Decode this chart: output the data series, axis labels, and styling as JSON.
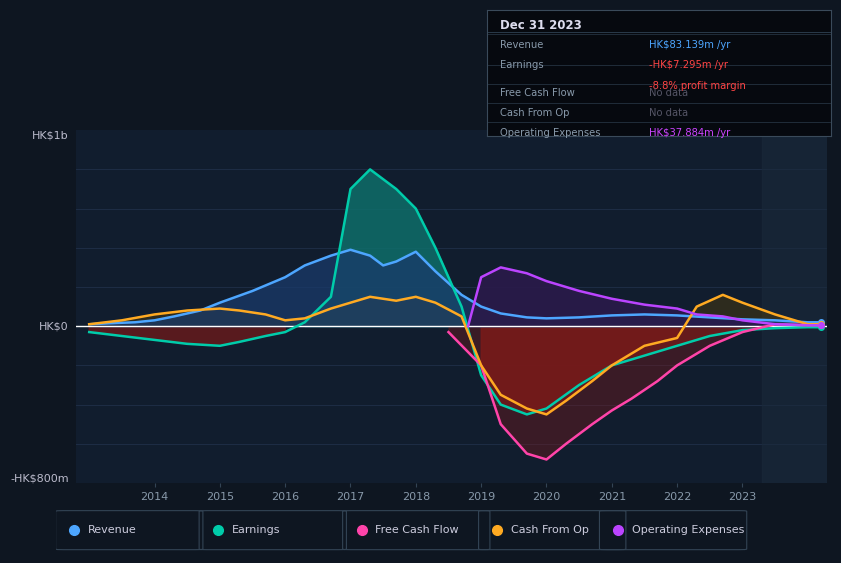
{
  "bg_color": "#0e1621",
  "chart_bg": "#111d2e",
  "title_date": "Dec 31 2023",
  "info_rows": [
    {
      "label": "Revenue",
      "value": "HK$83.139m /yr",
      "value_color": "#4da6ff",
      "subvalue": null,
      "subvalue_color": null
    },
    {
      "label": "Earnings",
      "value": "-HK$7.295m /yr",
      "value_color": "#ff4444",
      "subvalue": "-8.8% profit margin",
      "subvalue_color": "#ff4444"
    },
    {
      "label": "Free Cash Flow",
      "value": "No data",
      "value_color": "#555566",
      "subvalue": null,
      "subvalue_color": null
    },
    {
      "label": "Cash From Op",
      "value": "No data",
      "value_color": "#555566",
      "subvalue": null,
      "subvalue_color": null
    },
    {
      "label": "Operating Expenses",
      "value": "HK$37.884m /yr",
      "value_color": "#cc44ff",
      "subvalue": null,
      "subvalue_color": null
    }
  ],
  "ylabel_top": "HK$1b",
  "ylabel_zero": "HK$0",
  "ylabel_bot": "-HK$800m",
  "ylim": [
    -800,
    1000
  ],
  "xlim": [
    2012.8,
    2024.3
  ],
  "rev_color": "#4da6ff",
  "earn_color": "#00ccaa",
  "fcf_color": "#ff44aa",
  "cashop_color": "#ffaa22",
  "opex_color": "#bb44ff",
  "legend": [
    {
      "label": "Revenue",
      "color": "#4da6ff"
    },
    {
      "label": "Earnings",
      "color": "#00ccaa"
    },
    {
      "label": "Free Cash Flow",
      "color": "#ff44aa"
    },
    {
      "label": "Cash From Op",
      "color": "#ffaa22"
    },
    {
      "label": "Operating Expenses",
      "color": "#bb44ff"
    }
  ],
  "revenue_x": [
    2013.0,
    2013.3,
    2013.7,
    2014.0,
    2014.3,
    2014.7,
    2015.0,
    2015.5,
    2016.0,
    2016.3,
    2016.7,
    2017.0,
    2017.3,
    2017.5,
    2017.7,
    2018.0,
    2018.3,
    2018.7,
    2019.0,
    2019.3,
    2019.7,
    2020.0,
    2020.5,
    2021.0,
    2021.5,
    2022.0,
    2022.5,
    2023.0,
    2023.5,
    2024.0,
    2024.2
  ],
  "revenue_y": [
    10,
    15,
    20,
    30,
    50,
    80,
    120,
    180,
    250,
    310,
    360,
    390,
    360,
    310,
    330,
    380,
    280,
    160,
    100,
    65,
    45,
    40,
    45,
    55,
    60,
    55,
    45,
    35,
    30,
    20,
    20
  ],
  "earnings_x": [
    2013.0,
    2013.5,
    2014.0,
    2014.5,
    2015.0,
    2015.3,
    2015.7,
    2016.0,
    2016.3,
    2016.7,
    2017.0,
    2017.3,
    2017.5,
    2017.7,
    2018.0,
    2018.3,
    2018.7,
    2019.0,
    2019.3,
    2019.7,
    2020.0,
    2020.5,
    2021.0,
    2021.5,
    2022.0,
    2022.5,
    2023.0,
    2023.5,
    2024.0,
    2024.2
  ],
  "earnings_y": [
    -30,
    -50,
    -70,
    -90,
    -100,
    -80,
    -50,
    -30,
    20,
    150,
    700,
    800,
    750,
    700,
    600,
    400,
    100,
    -250,
    -400,
    -450,
    -420,
    -300,
    -200,
    -150,
    -100,
    -50,
    -20,
    -10,
    -5,
    -5
  ],
  "fcf_x": [
    2018.5,
    2019.0,
    2019.3,
    2019.7,
    2020.0,
    2020.3,
    2020.7,
    2021.0,
    2021.3,
    2021.7,
    2022.0,
    2022.5,
    2023.0,
    2023.5,
    2024.0,
    2024.2
  ],
  "fcf_y": [
    -30,
    -200,
    -500,
    -650,
    -680,
    -600,
    -500,
    -430,
    -370,
    -280,
    -200,
    -100,
    -30,
    10,
    5,
    5
  ],
  "cashop_x": [
    2013.0,
    2013.5,
    2014.0,
    2014.5,
    2015.0,
    2015.3,
    2015.7,
    2016.0,
    2016.3,
    2016.7,
    2017.0,
    2017.3,
    2017.7,
    2018.0,
    2018.3,
    2018.7,
    2019.0,
    2019.3,
    2019.7,
    2020.0,
    2020.3,
    2020.7,
    2021.0,
    2021.5,
    2022.0,
    2022.3,
    2022.7,
    2023.0,
    2023.5,
    2024.0,
    2024.2
  ],
  "cashop_y": [
    10,
    30,
    60,
    80,
    90,
    80,
    60,
    30,
    40,
    90,
    120,
    150,
    130,
    150,
    120,
    50,
    -200,
    -350,
    -420,
    -450,
    -380,
    -280,
    -200,
    -100,
    -60,
    100,
    160,
    120,
    60,
    10,
    10
  ],
  "opex_x": [
    2018.8,
    2019.0,
    2019.3,
    2019.7,
    2020.0,
    2020.5,
    2021.0,
    2021.5,
    2022.0,
    2022.3,
    2022.7,
    2023.0,
    2023.5,
    2024.0,
    2024.2
  ],
  "opex_y": [
    0,
    250,
    300,
    270,
    230,
    180,
    140,
    110,
    90,
    60,
    50,
    30,
    10,
    5,
    5
  ]
}
